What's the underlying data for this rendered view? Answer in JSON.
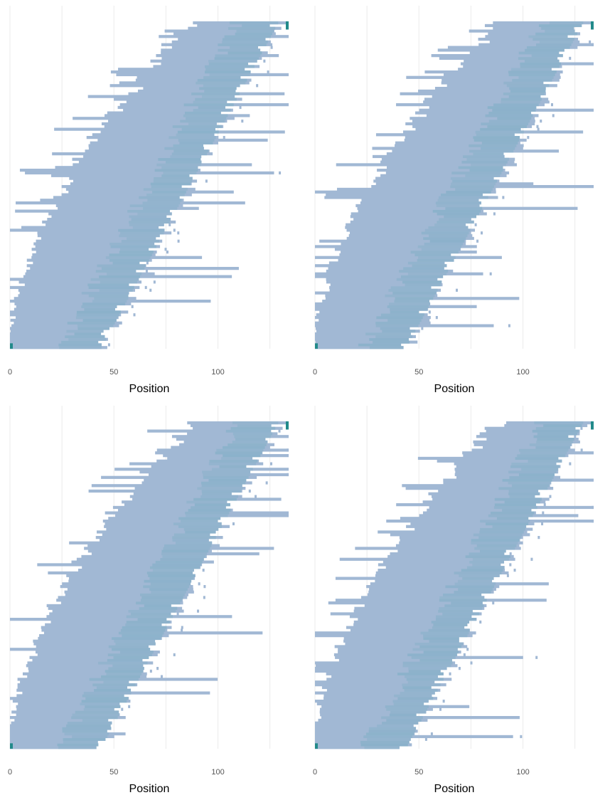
{
  "colors": {
    "background": "#ffffff",
    "grid": "#ebebeb",
    "row_fill": "#a1b8d4",
    "peak": "#228a8a",
    "dense": "#86b0c8"
  },
  "chart_data": [
    {
      "type": "heatmap",
      "title": "",
      "xlabel": "Position",
      "ylabel": "",
      "xlim": [
        0,
        134
      ],
      "x_ticks": [
        0,
        50,
        100
      ],
      "grid": "vertical lines at 0, 25, 50, 75, 100, 125",
      "n_rows": 120,
      "rows_sorted": "by start position, increasing toward top",
      "bottom_row_span": [
        0,
        40
      ],
      "top_row_span": [
        120,
        134
      ],
      "seed": 11
    },
    {
      "type": "heatmap",
      "title": "",
      "xlabel": "Position",
      "ylabel": "",
      "xlim": [
        0,
        134
      ],
      "x_ticks": [
        0,
        50,
        100
      ],
      "grid": "vertical lines at 0, 25, 50, 75, 100, 125",
      "n_rows": 120,
      "rows_sorted": "by start position, increasing toward top",
      "bottom_row_span": [
        0,
        40
      ],
      "top_row_span": [
        120,
        134
      ],
      "seed": 23
    },
    {
      "type": "heatmap",
      "title": "",
      "xlabel": "Position",
      "ylabel": "",
      "xlim": [
        0,
        134
      ],
      "x_ticks": [
        0,
        50,
        100
      ],
      "grid": "vertical lines at 0, 25, 50, 75, 100, 125",
      "n_rows": 120,
      "rows_sorted": "by start position, increasing toward top",
      "bottom_row_span": [
        0,
        40
      ],
      "top_row_span": [
        120,
        134
      ],
      "seed": 37
    },
    {
      "type": "heatmap",
      "title": "",
      "xlabel": "Position",
      "ylabel": "",
      "xlim": [
        0,
        134
      ],
      "x_ticks": [
        0,
        50,
        100
      ],
      "grid": "vertical lines at 0, 25, 50, 75, 100, 125",
      "n_rows": 120,
      "rows_sorted": "by start position, increasing toward top",
      "bottom_row_span": [
        0,
        40
      ],
      "top_row_span": [
        120,
        134
      ],
      "seed": 53
    }
  ]
}
